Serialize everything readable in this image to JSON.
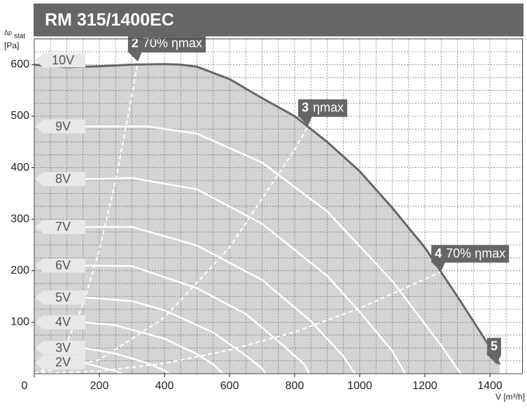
{
  "chart_data": {
    "type": "line",
    "title": "RM 315/1400EC",
    "y_label": [
      "Δp",
      "stat",
      "[Pa]"
    ],
    "x_label": "V̇ [m³/h]",
    "xlim": [
      0,
      1500
    ],
    "ylim": [
      0,
      650
    ],
    "xticks": [
      0,
      200,
      400,
      600,
      800,
      1000,
      1200,
      1400
    ],
    "yticks": [
      100,
      200,
      300,
      400,
      500,
      600
    ],
    "xgrid": [
      0,
      50,
      100,
      150,
      200,
      250,
      300,
      350,
      400,
      450,
      500,
      550,
      600,
      650,
      700,
      750,
      800,
      850,
      900,
      950,
      1000,
      1050,
      1100,
      1150,
      1200,
      1250,
      1300,
      1350,
      1400,
      1450,
      1500
    ],
    "ygrid": [
      0,
      25,
      50,
      75,
      100,
      125,
      150,
      175,
      200,
      225,
      250,
      275,
      300,
      325,
      350,
      375,
      400,
      425,
      450,
      475,
      500,
      525,
      550,
      575,
      600,
      625,
      650
    ],
    "grid": true,
    "fill_color": "#d4d4d4",
    "series": [
      {
        "name": "10V",
        "color": "#666666",
        "x": [
          0,
          100,
          200,
          300,
          400,
          450,
          500,
          600,
          700,
          800,
          900,
          1000,
          1100,
          1200,
          1300,
          1400,
          1430
        ],
        "values": [
          600,
          595,
          597,
          600,
          601,
          600,
          596,
          572,
          535,
          500,
          450,
          393,
          322,
          245,
          150,
          52,
          18
        ]
      },
      {
        "name": "9V",
        "color": "#ffffff",
        "x": [
          150,
          350,
          500,
          700,
          900,
          1100,
          1250,
          1310
        ],
        "values": [
          480,
          480,
          466,
          410,
          315,
          180,
          55,
          0
        ]
      },
      {
        "name": "8V",
        "color": "#ffffff",
        "x": [
          150,
          300,
          500,
          700,
          900,
          1000,
          1100,
          1140
        ],
        "values": [
          378,
          380,
          358,
          291,
          190,
          120,
          44,
          0
        ]
      },
      {
        "name": "7V",
        "color": "#ffffff",
        "x": [
          150,
          300,
          500,
          700,
          850,
          950,
          985
        ],
        "values": [
          285,
          285,
          249,
          182,
          102,
          34,
          0
        ]
      },
      {
        "name": "6V",
        "color": "#ffffff",
        "x": [
          150,
          300,
          500,
          650,
          750,
          830,
          845
        ],
        "values": [
          210,
          209,
          166,
          116,
          63,
          18,
          0
        ]
      },
      {
        "name": "5V",
        "color": "#ffffff",
        "x": [
          150,
          300,
          400,
          550,
          650,
          700,
          710
        ],
        "values": [
          148,
          141,
          123,
          80,
          35,
          10,
          0
        ]
      },
      {
        "name": "4V",
        "color": "#ffffff",
        "x": [
          150,
          250,
          400,
          500,
          550,
          580
        ],
        "values": [
          100,
          94,
          68,
          38,
          18,
          0
        ]
      },
      {
        "name": "3V",
        "color": "#ffffff",
        "x": [
          150,
          250,
          350,
          400,
          415
        ],
        "values": [
          50,
          39,
          20,
          6,
          0
        ]
      },
      {
        "name": "2V",
        "color": "#ffffff",
        "x": [
          150,
          200,
          250,
          272
        ],
        "values": [
          22,
          13,
          5,
          0
        ]
      }
    ],
    "efficiency_lines": [
      {
        "number": "2",
        "name": "70% ηmax",
        "x": [
          0,
          50,
          100,
          150,
          200,
          250,
          300,
          318
        ],
        "values": [
          0,
          15,
          60,
          135,
          240,
          375,
          540,
          606
        ]
      },
      {
        "number": "3",
        "name": "ηmax",
        "x": [
          0,
          200,
          400,
          600,
          800,
          841
        ],
        "values": [
          0,
          27,
          109,
          245,
          435,
          481
        ]
      },
      {
        "number": "4",
        "name": "70% ηmax",
        "x": [
          0,
          200,
          400,
          600,
          800,
          1000,
          1250
        ],
        "values": [
          0,
          5,
          20,
          46,
          81,
          127,
          198
        ]
      }
    ],
    "points": [
      {
        "label": "5",
        "x": 1430,
        "value": 18
      }
    ]
  }
}
